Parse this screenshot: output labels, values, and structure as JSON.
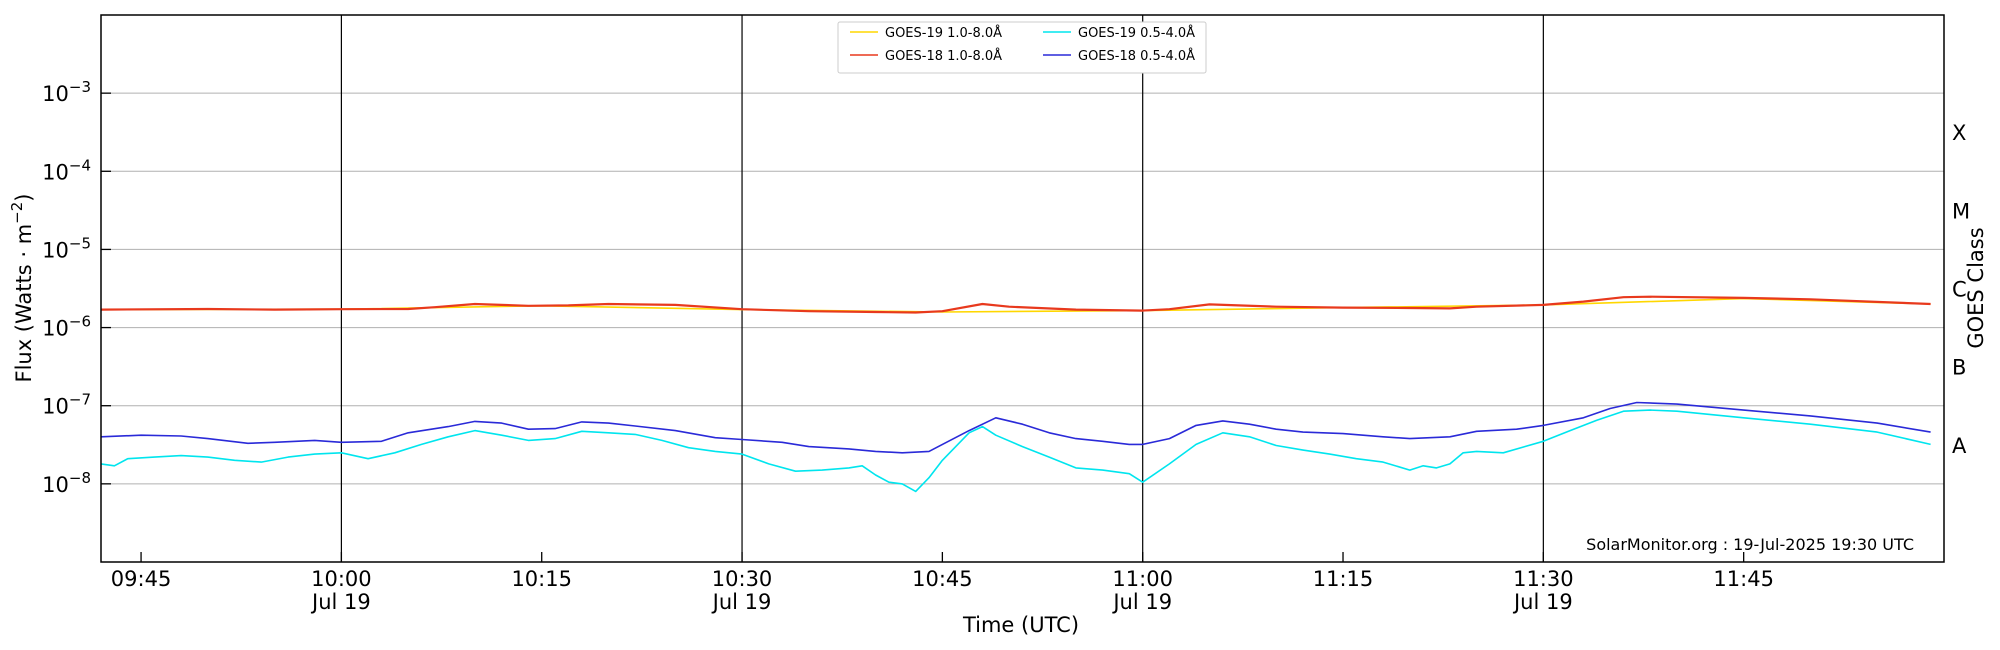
{
  "chart_data": {
    "type": "line",
    "xlabel": "Time (UTC)",
    "ylabel": "Flux (Watts · m",
    "ylabel_sup": "−2",
    "ylabel_close": ")",
    "right_label": "GOES Class",
    "y_scale": "log",
    "ylim": [
      1e-09,
      0.01
    ],
    "xlim_minutes": [
      "09:42",
      "12:00"
    ],
    "grid": "horizontal",
    "legend_placement": "top-center",
    "credit": "SolarMonitor.org : 19-Jul-2025 19:30 UTC",
    "y_ticks": [
      {
        "value": 1e-08,
        "base": "10",
        "exp": "−8"
      },
      {
        "value": 1e-07,
        "base": "10",
        "exp": "−7"
      },
      {
        "value": 1e-06,
        "base": "10",
        "exp": "−6"
      },
      {
        "value": 1e-05,
        "base": "10",
        "exp": "−5"
      },
      {
        "value": 0.0001,
        "base": "10",
        "exp": "−4"
      },
      {
        "value": 0.001,
        "base": "10",
        "exp": "−3"
      }
    ],
    "x_ticks": [
      {
        "time": "09:45",
        "label": "09:45",
        "date": ""
      },
      {
        "time": "10:00",
        "label": "10:00",
        "date": "Jul 19"
      },
      {
        "time": "10:15",
        "label": "10:15",
        "date": ""
      },
      {
        "time": "10:30",
        "label": "10:30",
        "date": "Jul 19"
      },
      {
        "time": "10:45",
        "label": "10:45",
        "date": ""
      },
      {
        "time": "11:00",
        "label": "11:00",
        "date": "Jul 19"
      },
      {
        "time": "11:15",
        "label": "11:15",
        "date": ""
      },
      {
        "time": "11:30",
        "label": "11:30",
        "date": "Jul 19"
      },
      {
        "time": "11:45",
        "label": "11:45",
        "date": ""
      }
    ],
    "vlines": [
      "10:00",
      "10:30",
      "11:00",
      "11:30"
    ],
    "goes_classes": [
      {
        "label": "A",
        "value": 3.16e-08
      },
      {
        "label": "B",
        "value": 3.16e-07
      },
      {
        "label": "C",
        "value": 3.16e-06
      },
      {
        "label": "M",
        "value": 3.16e-05
      },
      {
        "label": "X",
        "value": 0.000316
      }
    ],
    "series": [
      {
        "name": "GOES-19 1.0-8.0Å",
        "color": "#ffd700",
        "x": [
          "09:42",
          "10:00",
          "10:15",
          "10:30",
          "10:45",
          "11:00",
          "11:15",
          "11:30",
          "11:45",
          "11:59"
        ],
        "values": [
          1.7e-06,
          1.72e-06,
          1.9e-06,
          1.7e-06,
          1.58e-06,
          1.65e-06,
          1.8e-06,
          1.95e-06,
          2.35e-06,
          2e-06
        ]
      },
      {
        "name": "GOES-18 1.0-8.0Å",
        "color": "#e8391d",
        "x": [
          "09:42",
          "09:50",
          "09:55",
          "10:00",
          "10:05",
          "10:07",
          "10:10",
          "10:14",
          "10:17",
          "10:20",
          "10:25",
          "10:30",
          "10:35",
          "10:40",
          "10:43",
          "10:45",
          "10:48",
          "10:50",
          "10:55",
          "11:00",
          "11:02",
          "11:05",
          "11:10",
          "11:15",
          "11:20",
          "11:23",
          "11:25",
          "11:30",
          "11:33",
          "11:36",
          "11:38",
          "11:45",
          "11:50",
          "11:59"
        ],
        "values": [
          1.7e-06,
          1.73e-06,
          1.7e-06,
          1.72e-06,
          1.73e-06,
          1.82e-06,
          2e-06,
          1.9e-06,
          1.92e-06,
          2e-06,
          1.95e-06,
          1.72e-06,
          1.62e-06,
          1.58e-06,
          1.56e-06,
          1.62e-06,
          2e-06,
          1.85e-06,
          1.7e-06,
          1.65e-06,
          1.72e-06,
          1.98e-06,
          1.85e-06,
          1.8e-06,
          1.78e-06,
          1.76e-06,
          1.85e-06,
          1.95e-06,
          2.15e-06,
          2.45e-06,
          2.48e-06,
          2.4e-06,
          2.3e-06,
          2e-06
        ]
      },
      {
        "name": "GOES-19 0.5-4.0Å",
        "color": "#00e5ee",
        "x": [
          "09:42",
          "09:43",
          "09:44",
          "09:46",
          "09:48",
          "09:50",
          "09:52",
          "09:54",
          "09:56",
          "09:58",
          "10:00",
          "10:02",
          "10:04",
          "10:06",
          "10:08",
          "10:10",
          "10:12",
          "10:14",
          "10:16",
          "10:18",
          "10:20",
          "10:22",
          "10:24",
          "10:26",
          "10:28",
          "10:30",
          "10:32",
          "10:34",
          "10:36",
          "10:38",
          "10:39",
          "10:40",
          "10:41",
          "10:42",
          "10:43",
          "10:44",
          "10:45",
          "10:47",
          "10:48",
          "10:49",
          "10:51",
          "10:53",
          "10:55",
          "10:57",
          "10:59",
          "11:00",
          "11:02",
          "11:04",
          "11:06",
          "11:08",
          "11:10",
          "11:12",
          "11:14",
          "11:16",
          "11:18",
          "11:20",
          "11:21",
          "11:22",
          "11:23",
          "11:24",
          "11:25",
          "11:27",
          "11:30",
          "11:32",
          "11:34",
          "11:36",
          "11:38",
          "11:40",
          "11:45",
          "11:50",
          "11:55",
          "11:59"
        ],
        "values": [
          1.8e-08,
          1.7e-08,
          2.1e-08,
          2.2e-08,
          2.3e-08,
          2.2e-08,
          2e-08,
          1.9e-08,
          2.2e-08,
          2.4e-08,
          2.5e-08,
          2.1e-08,
          2.5e-08,
          3.2e-08,
          4e-08,
          4.8e-08,
          4.2e-08,
          3.6e-08,
          3.8e-08,
          4.7e-08,
          4.5e-08,
          4.3e-08,
          3.6e-08,
          2.9e-08,
          2.6e-08,
          2.4e-08,
          1.8e-08,
          1.45e-08,
          1.5e-08,
          1.6e-08,
          1.7e-08,
          1.3e-08,
          1.05e-08,
          1e-08,
          8e-09,
          1.2e-08,
          2e-08,
          4.5e-08,
          5.4e-08,
          4.2e-08,
          3e-08,
          2.2e-08,
          1.6e-08,
          1.5e-08,
          1.35e-08,
          1.05e-08,
          1.8e-08,
          3.2e-08,
          4.5e-08,
          4e-08,
          3.1e-08,
          2.7e-08,
          2.4e-08,
          2.1e-08,
          1.9e-08,
          1.5e-08,
          1.7e-08,
          1.6e-08,
          1.8e-08,
          2.5e-08,
          2.6e-08,
          2.5e-08,
          3.5e-08,
          4.8e-08,
          6.5e-08,
          8.5e-08,
          8.8e-08,
          8.5e-08,
          7e-08,
          5.8e-08,
          4.6e-08,
          3.2e-08
        ]
      },
      {
        "name": "GOES-18 0.5-4.0Å",
        "color": "#2a2ad8",
        "x": [
          "09:42",
          "09:45",
          "09:48",
          "09:50",
          "09:53",
          "09:55",
          "09:58",
          "10:00",
          "10:03",
          "10:05",
          "10:08",
          "10:10",
          "10:12",
          "10:14",
          "10:16",
          "10:18",
          "10:20",
          "10:22",
          "10:25",
          "10:28",
          "10:30",
          "10:33",
          "10:35",
          "10:38",
          "10:40",
          "10:42",
          "10:44",
          "10:45",
          "10:47",
          "10:49",
          "10:51",
          "10:53",
          "10:55",
          "10:57",
          "10:59",
          "11:00",
          "11:02",
          "11:04",
          "11:06",
          "11:08",
          "11:10",
          "11:12",
          "11:15",
          "11:18",
          "11:20",
          "11:23",
          "11:25",
          "11:28",
          "11:30",
          "11:33",
          "11:35",
          "11:37",
          "11:40",
          "11:45",
          "11:50",
          "11:55",
          "11:59"
        ],
        "values": [
          4e-08,
          4.2e-08,
          4.1e-08,
          3.8e-08,
          3.3e-08,
          3.4e-08,
          3.6e-08,
          3.4e-08,
          3.5e-08,
          4.5e-08,
          5.4e-08,
          6.3e-08,
          6e-08,
          5e-08,
          5.1e-08,
          6.2e-08,
          6e-08,
          5.5e-08,
          4.8e-08,
          3.9e-08,
          3.7e-08,
          3.4e-08,
          3e-08,
          2.8e-08,
          2.6e-08,
          2.5e-08,
          2.6e-08,
          3.2e-08,
          4.8e-08,
          7e-08,
          5.8e-08,
          4.5e-08,
          3.8e-08,
          3.5e-08,
          3.2e-08,
          3.2e-08,
          3.8e-08,
          5.6e-08,
          6.4e-08,
          5.8e-08,
          5e-08,
          4.6e-08,
          4.4e-08,
          4e-08,
          3.8e-08,
          4e-08,
          4.7e-08,
          5e-08,
          5.6e-08,
          7e-08,
          9.2e-08,
          1.1e-07,
          1.05e-07,
          8.8e-08,
          7.4e-08,
          6e-08,
          4.6e-08
        ]
      }
    ]
  }
}
